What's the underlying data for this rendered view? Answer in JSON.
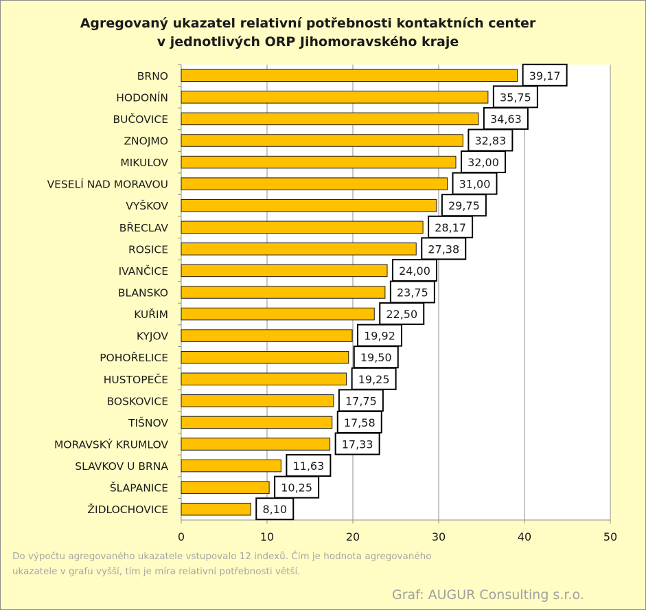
{
  "chart_data": {
    "type": "bar",
    "orientation": "horizontal",
    "title_lines": [
      "Agregovaný ukazatel relativní potřebnosti kontaktních center",
      "v jednotlivých ORP Jihomoravského kraje"
    ],
    "categories": [
      "BRNO",
      "HODONÍN",
      "BUČOVICE",
      "ZNOJMO",
      "MIKULOV",
      "VESELÍ NAD MORAVOU",
      "VYŠKOV",
      "BŘECLAV",
      "ROSICE",
      "IVANČICE",
      "BLANSKO",
      "KUŘIM",
      "KYJOV",
      "POHOŘELICE",
      "HUSTOPEČE",
      "BOSKOVICE",
      "TIŠNOV",
      "MORAVSKÝ KRUMLOV",
      "SLAVKOV U BRNA",
      "ŠLAPANICE",
      "ŽIDLOCHOVICE"
    ],
    "values": [
      39.17,
      35.75,
      34.63,
      32.83,
      32.0,
      31.0,
      29.75,
      28.17,
      27.38,
      24.0,
      23.75,
      22.5,
      19.92,
      19.5,
      19.25,
      17.75,
      17.58,
      17.33,
      11.63,
      10.25,
      8.1
    ],
    "value_labels": [
      "39,17",
      "35,75",
      "34,63",
      "32,83",
      "32,00",
      "31,00",
      "29,75",
      "28,17",
      "27,38",
      "24,00",
      "23,75",
      "22,50",
      "19,92",
      "19,50",
      "19,25",
      "17,75",
      "17,58",
      "17,33",
      "11,63",
      "10,25",
      "8,10"
    ],
    "xlim": [
      0,
      50
    ],
    "xticks": [
      0,
      10,
      20,
      30,
      40,
      50
    ],
    "grid": "vertical",
    "bar_color": "#ffc000",
    "bar_border": "#1a1a1a",
    "plot_background": "#ffffff",
    "chart_background": "#fffdc4",
    "xlabel": "",
    "ylabel": ""
  },
  "footnote": {
    "line1": "Do výpočtu agregovaného ukazatele vstupovalo 12 indexů. Čím je hodnota agregovaného",
    "line2": "ukazatele v grafu vyšší, tím je míra relativní potřebnosti větší."
  },
  "credit": "Graf: AUGUR Consulting s.r.o."
}
